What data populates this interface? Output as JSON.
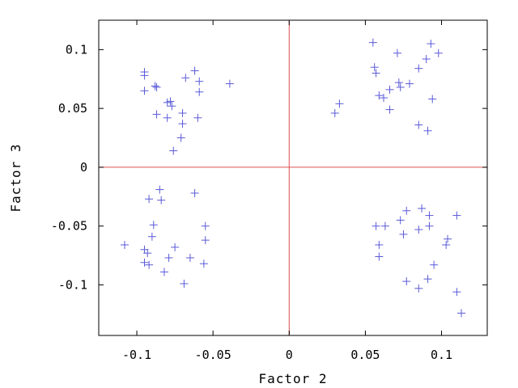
{
  "chart_data": {
    "type": "scatter",
    "xlabel": "Factor 2",
    "ylabel": "Factor 3",
    "xlim": [
      -0.125,
      0.13
    ],
    "ylim": [
      -0.143,
      0.125
    ],
    "x_ticks": [
      {
        "value": -0.1,
        "label": "-0.1"
      },
      {
        "value": -0.05,
        "label": "-0.05"
      },
      {
        "value": 0,
        "label": "0"
      },
      {
        "value": 0.05,
        "label": "0.05"
      },
      {
        "value": 0.1,
        "label": "0.1"
      }
    ],
    "y_ticks": [
      {
        "value": 0.1,
        "label": "0.1"
      },
      {
        "value": 0.05,
        "label": "0.05"
      },
      {
        "value": 0,
        "label": "0"
      },
      {
        "value": -0.05,
        "label": "-0.05"
      },
      {
        "value": -0.1,
        "label": "-0.1"
      }
    ],
    "reference_lines": {
      "x": 0,
      "y": 0
    },
    "grid": false,
    "legend": "none",
    "marker": "plus",
    "colors": {
      "points": "#5a5ad8",
      "reference_lines": "#e05050",
      "axes": "#000000"
    },
    "series": [
      {
        "points": [
          [
            -0.095,
            0.081
          ],
          [
            -0.095,
            0.078
          ],
          [
            -0.095,
            0.065
          ],
          [
            -0.088,
            0.069
          ],
          [
            -0.087,
            0.068
          ],
          [
            -0.08,
            0.055
          ],
          [
            -0.078,
            0.056
          ],
          [
            -0.077,
            0.052
          ],
          [
            -0.087,
            0.045
          ],
          [
            -0.08,
            0.042
          ],
          [
            -0.07,
            0.046
          ],
          [
            -0.07,
            0.037
          ],
          [
            -0.071,
            0.025
          ],
          [
            -0.076,
            0.014
          ],
          [
            -0.068,
            0.076
          ],
          [
            -0.062,
            0.082
          ],
          [
            -0.059,
            0.073
          ],
          [
            -0.059,
            0.064
          ],
          [
            -0.06,
            0.042
          ],
          [
            -0.039,
            0.071
          ],
          [
            0.055,
            0.106
          ],
          [
            0.056,
            0.085
          ],
          [
            0.057,
            0.08
          ],
          [
            0.071,
            0.097
          ],
          [
            0.093,
            0.105
          ],
          [
            0.098,
            0.097
          ],
          [
            0.09,
            0.092
          ],
          [
            0.085,
            0.084
          ],
          [
            0.079,
            0.071
          ],
          [
            0.072,
            0.072
          ],
          [
            0.073,
            0.068
          ],
          [
            0.066,
            0.066
          ],
          [
            0.059,
            0.061
          ],
          [
            0.062,
            0.059
          ],
          [
            0.094,
            0.058
          ],
          [
            0.066,
            0.049
          ],
          [
            0.033,
            0.054
          ],
          [
            0.03,
            0.046
          ],
          [
            0.085,
            0.036
          ],
          [
            0.091,
            0.031
          ],
          [
            -0.085,
            -0.019
          ],
          [
            -0.092,
            -0.027
          ],
          [
            -0.084,
            -0.028
          ],
          [
            -0.062,
            -0.022
          ],
          [
            -0.089,
            -0.049
          ],
          [
            -0.055,
            -0.05
          ],
          [
            -0.09,
            -0.059
          ],
          [
            -0.055,
            -0.062
          ],
          [
            -0.075,
            -0.068
          ],
          [
            -0.108,
            -0.066
          ],
          [
            -0.095,
            -0.07
          ],
          [
            -0.093,
            -0.073
          ],
          [
            -0.079,
            -0.077
          ],
          [
            -0.065,
            -0.077
          ],
          [
            -0.095,
            -0.081
          ],
          [
            -0.092,
            -0.083
          ],
          [
            -0.056,
            -0.082
          ],
          [
            -0.082,
            -0.089
          ],
          [
            -0.069,
            -0.099
          ],
          [
            0.077,
            -0.037
          ],
          [
            0.087,
            -0.035
          ],
          [
            0.092,
            -0.041
          ],
          [
            0.11,
            -0.041
          ],
          [
            0.073,
            -0.045
          ],
          [
            0.057,
            -0.05
          ],
          [
            0.063,
            -0.05
          ],
          [
            0.092,
            -0.05
          ],
          [
            0.085,
            -0.053
          ],
          [
            0.075,
            -0.057
          ],
          [
            0.104,
            -0.061
          ],
          [
            0.103,
            -0.066
          ],
          [
            0.059,
            -0.066
          ],
          [
            0.059,
            -0.076
          ],
          [
            0.095,
            -0.083
          ],
          [
            0.077,
            -0.097
          ],
          [
            0.085,
            -0.103
          ],
          [
            0.091,
            -0.095
          ],
          [
            0.11,
            -0.106
          ],
          [
            0.113,
            -0.124
          ]
        ]
      }
    ]
  }
}
